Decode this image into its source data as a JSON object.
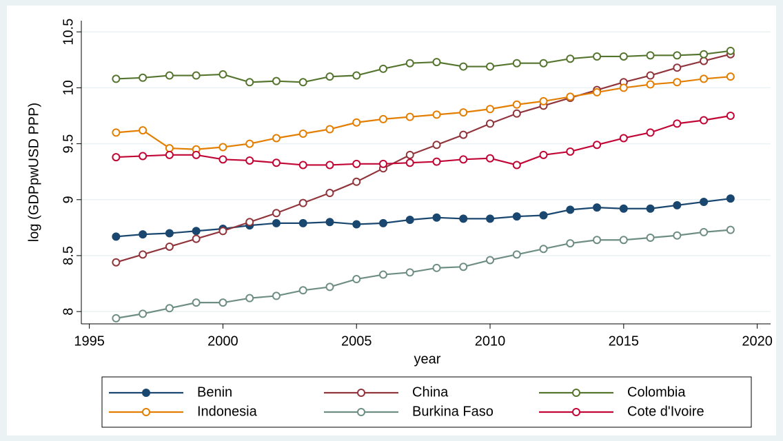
{
  "chart_data": {
    "type": "line",
    "x_label": "year",
    "y_label": "log (GDPpwUSD PPP)",
    "x": [
      1996,
      1997,
      1998,
      1999,
      2000,
      2001,
      2002,
      2003,
      2004,
      2005,
      2006,
      2007,
      2008,
      2009,
      2010,
      2011,
      2012,
      2013,
      2014,
      2015,
      2016,
      2017,
      2018,
      2019
    ],
    "xlim": [
      1994.7,
      2020.5
    ],
    "xticks": [
      1995,
      2000,
      2005,
      2010,
      2015,
      2020
    ],
    "ylim": [
      7.89,
      10.6
    ],
    "yticks": [
      8,
      8.5,
      9,
      9.5,
      10,
      10.5
    ],
    "grid": true,
    "legend_position": "bottom",
    "series": [
      {
        "name": "Benin",
        "color": "#1a476f",
        "marker": "filled",
        "values": [
          8.67,
          8.69,
          8.7,
          8.72,
          8.74,
          8.77,
          8.79,
          8.79,
          8.8,
          8.78,
          8.79,
          8.82,
          8.84,
          8.83,
          8.83,
          8.85,
          8.86,
          8.91,
          8.93,
          8.92,
          8.92,
          8.95,
          8.98,
          9.01
        ]
      },
      {
        "name": "China",
        "color": "#90353b",
        "marker": "hollow",
        "values": [
          8.44,
          8.51,
          8.58,
          8.65,
          8.72,
          8.8,
          8.88,
          8.97,
          9.06,
          9.16,
          9.28,
          9.4,
          9.49,
          9.58,
          9.68,
          9.77,
          9.84,
          9.91,
          9.98,
          10.05,
          10.11,
          10.18,
          10.24,
          10.3
        ]
      },
      {
        "name": "Colombia",
        "color": "#55752f",
        "marker": "hollow",
        "values": [
          10.08,
          10.09,
          10.11,
          10.11,
          10.12,
          10.05,
          10.06,
          10.05,
          10.1,
          10.11,
          10.17,
          10.22,
          10.23,
          10.19,
          10.19,
          10.22,
          10.22,
          10.26,
          10.28,
          10.28,
          10.29,
          10.29,
          10.3,
          10.33
        ]
      },
      {
        "name": "Indonesia",
        "color": "#e37e00",
        "marker": "hollow",
        "values": [
          9.6,
          9.62,
          9.46,
          9.45,
          9.47,
          9.5,
          9.55,
          9.59,
          9.63,
          9.69,
          9.72,
          9.74,
          9.76,
          9.78,
          9.81,
          9.85,
          9.88,
          9.92,
          9.96,
          10.0,
          10.03,
          10.05,
          10.08,
          10.1
        ]
      },
      {
        "name": "Burkina Faso",
        "color": "#6e8e84",
        "marker": "hollow",
        "values": [
          7.94,
          7.98,
          8.03,
          8.08,
          8.08,
          8.12,
          8.14,
          8.19,
          8.22,
          8.29,
          8.33,
          8.35,
          8.39,
          8.4,
          8.46,
          8.51,
          8.56,
          8.61,
          8.64,
          8.64,
          8.66,
          8.68,
          8.71,
          8.73
        ]
      },
      {
        "name": "Cote d'Ivoire",
        "color": "#c10534",
        "marker": "hollow",
        "values": [
          9.38,
          9.39,
          9.4,
          9.4,
          9.36,
          9.35,
          9.33,
          9.31,
          9.31,
          9.32,
          9.32,
          9.33,
          9.34,
          9.36,
          9.37,
          9.31,
          9.4,
          9.43,
          9.49,
          9.55,
          9.6,
          9.68,
          9.71,
          9.75
        ]
      }
    ]
  }
}
